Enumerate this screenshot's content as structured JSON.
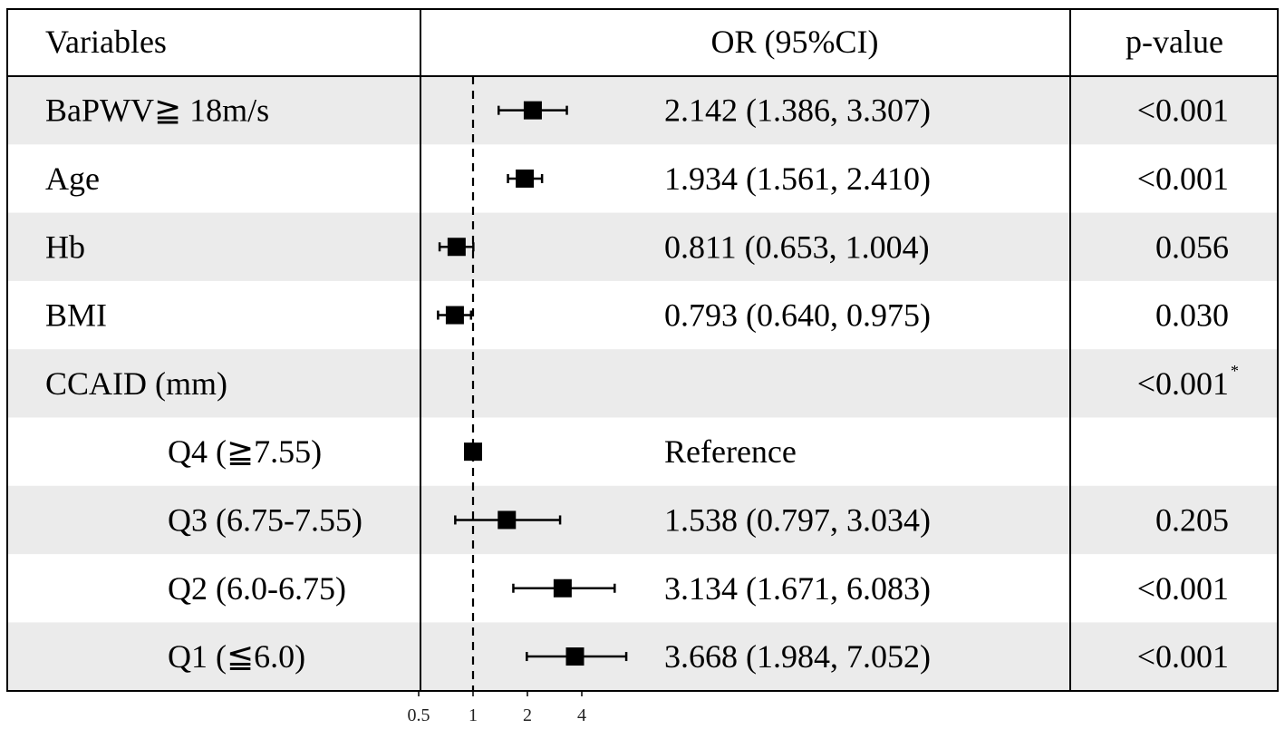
{
  "table": {
    "headers": {
      "variables": "Variables",
      "or": "OR (95%CI)",
      "p": "p-value"
    },
    "rows": [
      {
        "label": "BaPWV≧ 18m/s",
        "or_text": "2.142 (1.386, 3.307)",
        "p": "<0.001",
        "p_note": "",
        "indent": false
      },
      {
        "label": "Age",
        "or_text": "1.934 (1.561, 2.410)",
        "p": "<0.001",
        "p_note": "",
        "indent": false
      },
      {
        "label": "Hb",
        "or_text": "0.811 (0.653, 1.004)",
        "p": "0.056",
        "p_note": "",
        "indent": false
      },
      {
        "label": "BMI",
        "or_text": "0.793 (0.640, 0.975)",
        "p": "0.030",
        "p_note": "",
        "indent": false
      },
      {
        "label": "CCAID (mm)",
        "or_text": "",
        "p": "<0.001",
        "p_note": "*",
        "indent": false
      },
      {
        "label": "Q4 (≧7.55)",
        "or_text": "Reference",
        "p": "",
        "p_note": "",
        "indent": true
      },
      {
        "label": "Q3 (6.75-7.55)",
        "or_text": "1.538 (0.797, 3.034)",
        "p": "0.205",
        "p_note": "",
        "indent": true
      },
      {
        "label": "Q2 (6.0-6.75)",
        "or_text": "3.134 (1.671, 6.083)",
        "p": "<0.001",
        "p_note": "",
        "indent": true
      },
      {
        "label": "Q1 (≦6.0)",
        "or_text": "3.668 (1.984, 7.052)",
        "p": "<0.001",
        "p_note": "",
        "indent": true
      }
    ]
  },
  "chart_data": {
    "type": "scatter",
    "subtype": "forest",
    "x_scale": "log2",
    "xlim": [
      0.5,
      4.5
    ],
    "x_ticks": [
      0.5,
      1,
      2,
      4
    ],
    "x_tick_labels": [
      "0.5",
      "1",
      "2",
      "4"
    ],
    "reference_line": 1,
    "categories": [
      "BaPWV≧ 18m/s",
      "Age",
      "Hb",
      "BMI",
      "CCAID (mm)",
      "Q4 (≧7.55)",
      "Q3 (6.75-7.55)",
      "Q2 (6.0-6.75)",
      "Q1 (≦6.0)"
    ],
    "points": [
      {
        "row": 0,
        "or": 2.142,
        "lo": 1.386,
        "hi": 3.307
      },
      {
        "row": 1,
        "or": 1.934,
        "lo": 1.561,
        "hi": 2.41
      },
      {
        "row": 2,
        "or": 0.811,
        "lo": 0.653,
        "hi": 1.004
      },
      {
        "row": 3,
        "or": 0.793,
        "lo": 0.64,
        "hi": 0.975
      },
      {
        "row": 5,
        "or": 1.0,
        "lo": null,
        "hi": null
      },
      {
        "row": 6,
        "or": 1.538,
        "lo": 0.797,
        "hi": 3.034
      },
      {
        "row": 7,
        "or": 3.134,
        "lo": 1.671,
        "hi": 6.083
      },
      {
        "row": 8,
        "or": 3.668,
        "lo": 1.984,
        "hi": 7.052
      }
    ],
    "colors": {
      "marker": "#000000",
      "band": "#ebebeb",
      "line": "#000000"
    }
  }
}
